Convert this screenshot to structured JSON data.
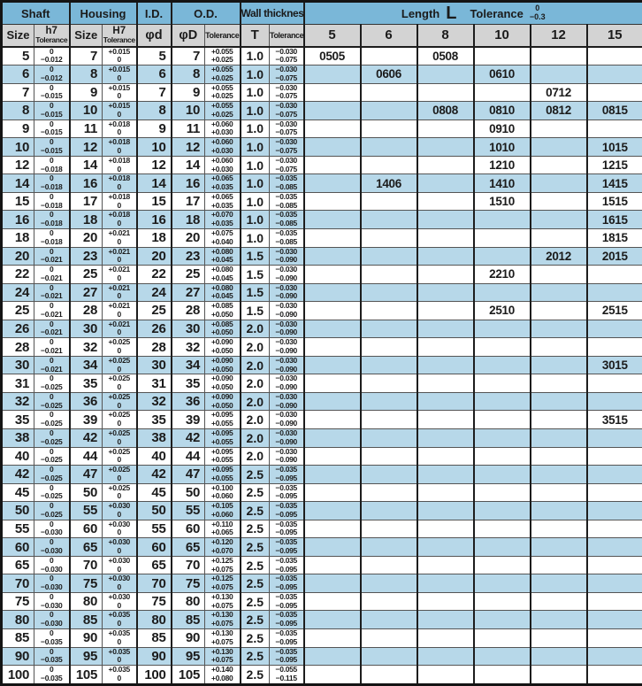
{
  "colors": {
    "header_blue": "#7ab7d8",
    "stripe_blue": "#b7d8e9",
    "subheader_gray": "#d3d3d3"
  },
  "header": {
    "groups": {
      "shaft": "Shaft",
      "housing": "Housing",
      "id": "I.D.",
      "od": "O.D.",
      "wall": "Wall thickness",
      "length_word": "Length",
      "length_symbol": "L",
      "length_tol_word": "Tolerance",
      "length_tol_top": "0",
      "length_tol_bottom": "−0.3"
    },
    "sub": {
      "size": "Size",
      "h7": "h7",
      "H7": "H7",
      "tolerance": "Tolerance",
      "phid": "φd",
      "phiD": "φD",
      "t": "T",
      "lengths": [
        "5",
        "6",
        "8",
        "10",
        "12",
        "15"
      ]
    }
  },
  "table": {
    "rows": [
      {
        "size": "5",
        "h7": [
          "0",
          "−0.012"
        ],
        "housing": "7",
        "H7": [
          "+0.015",
          "0"
        ],
        "id": "5",
        "od": "7",
        "od_tol": [
          "+0.055",
          "+0.025"
        ],
        "t": "1.0",
        "wall_tol": [
          "−0.030",
          "−0.075"
        ],
        "lengths": [
          "0505",
          "",
          "0508",
          "",
          "",
          ""
        ]
      },
      {
        "size": "6",
        "h7": [
          "0",
          "−0.012"
        ],
        "housing": "8",
        "H7": [
          "+0.015",
          "0"
        ],
        "id": "6",
        "od": "8",
        "od_tol": [
          "+0.055",
          "+0.025"
        ],
        "t": "1.0",
        "wall_tol": [
          "−0.030",
          "−0.075"
        ],
        "lengths": [
          "",
          "0606",
          "",
          "0610",
          "",
          ""
        ]
      },
      {
        "size": "7",
        "h7": [
          "0",
          "−0.015"
        ],
        "housing": "9",
        "H7": [
          "+0.015",
          "0"
        ],
        "id": "7",
        "od": "9",
        "od_tol": [
          "+0.055",
          "+0.025"
        ],
        "t": "1.0",
        "wall_tol": [
          "−0.030",
          "−0.075"
        ],
        "lengths": [
          "",
          "",
          "",
          "",
          "0712",
          ""
        ]
      },
      {
        "size": "8",
        "h7": [
          "0",
          "−0.015"
        ],
        "housing": "10",
        "H7": [
          "+0.015",
          "0"
        ],
        "id": "8",
        "od": "10",
        "od_tol": [
          "+0.055",
          "+0.025"
        ],
        "t": "1.0",
        "wall_tol": [
          "−0.030",
          "−0.075"
        ],
        "lengths": [
          "",
          "",
          "0808",
          "0810",
          "0812",
          "0815"
        ]
      },
      {
        "size": "9",
        "h7": [
          "0",
          "−0.015"
        ],
        "housing": "11",
        "H7": [
          "+0.018",
          "0"
        ],
        "id": "9",
        "od": "11",
        "od_tol": [
          "+0.060",
          "+0.030"
        ],
        "t": "1.0",
        "wall_tol": [
          "−0.030",
          "−0.075"
        ],
        "lengths": [
          "",
          "",
          "",
          "0910",
          "",
          ""
        ]
      },
      {
        "size": "10",
        "h7": [
          "0",
          "−0.015"
        ],
        "housing": "12",
        "H7": [
          "+0.018",
          "0"
        ],
        "id": "10",
        "od": "12",
        "od_tol": [
          "+0.060",
          "+0.030"
        ],
        "t": "1.0",
        "wall_tol": [
          "−0.030",
          "−0.075"
        ],
        "lengths": [
          "",
          "",
          "",
          "1010",
          "",
          "1015"
        ]
      },
      {
        "size": "12",
        "h7": [
          "0",
          "−0.018"
        ],
        "housing": "14",
        "H7": [
          "+0.018",
          "0"
        ],
        "id": "12",
        "od": "14",
        "od_tol": [
          "+0.060",
          "+0.030"
        ],
        "t": "1.0",
        "wall_tol": [
          "−0.030",
          "−0.075"
        ],
        "lengths": [
          "",
          "",
          "",
          "1210",
          "",
          "1215"
        ]
      },
      {
        "size": "14",
        "h7": [
          "0",
          "−0.018"
        ],
        "housing": "16",
        "H7": [
          "+0.018",
          "0"
        ],
        "id": "14",
        "od": "16",
        "od_tol": [
          "+0.065",
          "+0.035"
        ],
        "t": "1.0",
        "wall_tol": [
          "−0.035",
          "−0.085"
        ],
        "lengths": [
          "",
          "1406",
          "",
          "1410",
          "",
          "1415"
        ]
      },
      {
        "size": "15",
        "h7": [
          "0",
          "−0.018"
        ],
        "housing": "17",
        "H7": [
          "+0.018",
          "0"
        ],
        "id": "15",
        "od": "17",
        "od_tol": [
          "+0.065",
          "+0.035"
        ],
        "t": "1.0",
        "wall_tol": [
          "−0.035",
          "−0.085"
        ],
        "lengths": [
          "",
          "",
          "",
          "1510",
          "",
          "1515"
        ]
      },
      {
        "size": "16",
        "h7": [
          "0",
          "−0.018"
        ],
        "housing": "18",
        "H7": [
          "+0.018",
          "0"
        ],
        "id": "16",
        "od": "18",
        "od_tol": [
          "+0.070",
          "+0.035"
        ],
        "t": "1.0",
        "wall_tol": [
          "−0.035",
          "−0.085"
        ],
        "lengths": [
          "",
          "",
          "",
          "",
          "",
          "1615"
        ]
      },
      {
        "size": "18",
        "h7": [
          "0",
          "−0.018"
        ],
        "housing": "20",
        "H7": [
          "+0.021",
          "0"
        ],
        "id": "18",
        "od": "20",
        "od_tol": [
          "+0.075",
          "+0.040"
        ],
        "t": "1.0",
        "wall_tol": [
          "−0.035",
          "−0.085"
        ],
        "lengths": [
          "",
          "",
          "",
          "",
          "",
          "1815"
        ]
      },
      {
        "size": "20",
        "h7": [
          "0",
          "−0.021"
        ],
        "housing": "23",
        "H7": [
          "+0.021",
          "0"
        ],
        "id": "20",
        "od": "23",
        "od_tol": [
          "+0.080",
          "+0.045"
        ],
        "t": "1.5",
        "wall_tol": [
          "−0.030",
          "−0.090"
        ],
        "lengths": [
          "",
          "",
          "",
          "",
          "2012",
          "2015"
        ]
      },
      {
        "size": "22",
        "h7": [
          "0",
          "−0.021"
        ],
        "housing": "25",
        "H7": [
          "+0.021",
          "0"
        ],
        "id": "22",
        "od": "25",
        "od_tol": [
          "+0.080",
          "+0.045"
        ],
        "t": "1.5",
        "wall_tol": [
          "−0.030",
          "−0.090"
        ],
        "lengths": [
          "",
          "",
          "",
          "2210",
          "",
          ""
        ]
      },
      {
        "size": "24",
        "h7": [
          "0",
          "−0.021"
        ],
        "housing": "27",
        "H7": [
          "+0.021",
          "0"
        ],
        "id": "24",
        "od": "27",
        "od_tol": [
          "+0.080",
          "+0.045"
        ],
        "t": "1.5",
        "wall_tol": [
          "−0.030",
          "−0.090"
        ],
        "lengths": [
          "",
          "",
          "",
          "",
          "",
          ""
        ]
      },
      {
        "size": "25",
        "h7": [
          "0",
          "−0.021"
        ],
        "housing": "28",
        "H7": [
          "+0.021",
          "0"
        ],
        "id": "25",
        "od": "28",
        "od_tol": [
          "+0.085",
          "+0.050"
        ],
        "t": "1.5",
        "wall_tol": [
          "−0.030",
          "−0.090"
        ],
        "lengths": [
          "",
          "",
          "",
          "2510",
          "",
          "2515"
        ]
      },
      {
        "size": "26",
        "h7": [
          "0",
          "−0.021"
        ],
        "housing": "30",
        "H7": [
          "+0.021",
          "0"
        ],
        "id": "26",
        "od": "30",
        "od_tol": [
          "+0.085",
          "+0.050"
        ],
        "t": "2.0",
        "wall_tol": [
          "−0.030",
          "−0.090"
        ],
        "lengths": [
          "",
          "",
          "",
          "",
          "",
          ""
        ]
      },
      {
        "size": "28",
        "h7": [
          "0",
          "−0.021"
        ],
        "housing": "32",
        "H7": [
          "+0.025",
          "0"
        ],
        "id": "28",
        "od": "32",
        "od_tol": [
          "+0.090",
          "+0.050"
        ],
        "t": "2.0",
        "wall_tol": [
          "−0.030",
          "−0.090"
        ],
        "lengths": [
          "",
          "",
          "",
          "",
          "",
          ""
        ]
      },
      {
        "size": "30",
        "h7": [
          "0",
          "−0.021"
        ],
        "housing": "34",
        "H7": [
          "+0.025",
          "0"
        ],
        "id": "30",
        "od": "34",
        "od_tol": [
          "+0.090",
          "+0.050"
        ],
        "t": "2.0",
        "wall_tol": [
          "−0.030",
          "−0.090"
        ],
        "lengths": [
          "",
          "",
          "",
          "",
          "",
          "3015"
        ]
      },
      {
        "size": "31",
        "h7": [
          "0",
          "−0.025"
        ],
        "housing": "35",
        "H7": [
          "+0.025",
          "0"
        ],
        "id": "31",
        "od": "35",
        "od_tol": [
          "+0.090",
          "+0.050"
        ],
        "t": "2.0",
        "wall_tol": [
          "−0.030",
          "−0.090"
        ],
        "lengths": [
          "",
          "",
          "",
          "",
          "",
          ""
        ]
      },
      {
        "size": "32",
        "h7": [
          "0",
          "−0.025"
        ],
        "housing": "36",
        "H7": [
          "+0.025",
          "0"
        ],
        "id": "32",
        "od": "36",
        "od_tol": [
          "+0.090",
          "+0.050"
        ],
        "t": "2.0",
        "wall_tol": [
          "−0.030",
          "−0.090"
        ],
        "lengths": [
          "",
          "",
          "",
          "",
          "",
          ""
        ]
      },
      {
        "size": "35",
        "h7": [
          "0",
          "−0.025"
        ],
        "housing": "39",
        "H7": [
          "+0.025",
          "0"
        ],
        "id": "35",
        "od": "39",
        "od_tol": [
          "+0.095",
          "+0.055"
        ],
        "t": "2.0",
        "wall_tol": [
          "−0.030",
          "−0.090"
        ],
        "lengths": [
          "",
          "",
          "",
          "",
          "",
          "3515"
        ]
      },
      {
        "size": "38",
        "h7": [
          "0",
          "−0.025"
        ],
        "housing": "42",
        "H7": [
          "+0.025",
          "0"
        ],
        "id": "38",
        "od": "42",
        "od_tol": [
          "+0.095",
          "+0.055"
        ],
        "t": "2.0",
        "wall_tol": [
          "−0.030",
          "−0.090"
        ],
        "lengths": [
          "",
          "",
          "",
          "",
          "",
          ""
        ]
      },
      {
        "size": "40",
        "h7": [
          "0",
          "−0.025"
        ],
        "housing": "44",
        "H7": [
          "+0.025",
          "0"
        ],
        "id": "40",
        "od": "44",
        "od_tol": [
          "+0.095",
          "+0.055"
        ],
        "t": "2.0",
        "wall_tol": [
          "−0.030",
          "−0.090"
        ],
        "lengths": [
          "",
          "",
          "",
          "",
          "",
          ""
        ]
      },
      {
        "size": "42",
        "h7": [
          "0",
          "−0.025"
        ],
        "housing": "47",
        "H7": [
          "+0.025",
          "0"
        ],
        "id": "42",
        "od": "47",
        "od_tol": [
          "+0.095",
          "+0.055"
        ],
        "t": "2.5",
        "wall_tol": [
          "−0.035",
          "−0.095"
        ],
        "lengths": [
          "",
          "",
          "",
          "",
          "",
          ""
        ]
      },
      {
        "size": "45",
        "h7": [
          "0",
          "−0.025"
        ],
        "housing": "50",
        "H7": [
          "+0.025",
          "0"
        ],
        "id": "45",
        "od": "50",
        "od_tol": [
          "+0.100",
          "+0.060"
        ],
        "t": "2.5",
        "wall_tol": [
          "−0.035",
          "−0.095"
        ],
        "lengths": [
          "",
          "",
          "",
          "",
          "",
          ""
        ]
      },
      {
        "size": "50",
        "h7": [
          "0",
          "−0.025"
        ],
        "housing": "55",
        "H7": [
          "+0.030",
          "0"
        ],
        "id": "50",
        "od": "55",
        "od_tol": [
          "+0.105",
          "+0.060"
        ],
        "t": "2.5",
        "wall_tol": [
          "−0.035",
          "−0.095"
        ],
        "lengths": [
          "",
          "",
          "",
          "",
          "",
          ""
        ]
      },
      {
        "size": "55",
        "h7": [
          "0",
          "−0.030"
        ],
        "housing": "60",
        "H7": [
          "+0.030",
          "0"
        ],
        "id": "55",
        "od": "60",
        "od_tol": [
          "+0.110",
          "+0.065"
        ],
        "t": "2.5",
        "wall_tol": [
          "−0.035",
          "−0.095"
        ],
        "lengths": [
          "",
          "",
          "",
          "",
          "",
          ""
        ]
      },
      {
        "size": "60",
        "h7": [
          "0",
          "−0.030"
        ],
        "housing": "65",
        "H7": [
          "+0.030",
          "0"
        ],
        "id": "60",
        "od": "65",
        "od_tol": [
          "+0.120",
          "+0.070"
        ],
        "t": "2.5",
        "wall_tol": [
          "−0.035",
          "−0.095"
        ],
        "lengths": [
          "",
          "",
          "",
          "",
          "",
          ""
        ]
      },
      {
        "size": "65",
        "h7": [
          "0",
          "−0.030"
        ],
        "housing": "70",
        "H7": [
          "+0.030",
          "0"
        ],
        "id": "65",
        "od": "70",
        "od_tol": [
          "+0.125",
          "+0.075"
        ],
        "t": "2.5",
        "wall_tol": [
          "−0.035",
          "−0.095"
        ],
        "lengths": [
          "",
          "",
          "",
          "",
          "",
          ""
        ]
      },
      {
        "size": "70",
        "h7": [
          "0",
          "−0.030"
        ],
        "housing": "75",
        "H7": [
          "+0.030",
          "0"
        ],
        "id": "70",
        "od": "75",
        "od_tol": [
          "+0.125",
          "+0.075"
        ],
        "t": "2.5",
        "wall_tol": [
          "−0.035",
          "−0.095"
        ],
        "lengths": [
          "",
          "",
          "",
          "",
          "",
          ""
        ]
      },
      {
        "size": "75",
        "h7": [
          "0",
          "−0.030"
        ],
        "housing": "80",
        "H7": [
          "+0.030",
          "0"
        ],
        "id": "75",
        "od": "80",
        "od_tol": [
          "+0.130",
          "+0.075"
        ],
        "t": "2.5",
        "wall_tol": [
          "−0.035",
          "−0.095"
        ],
        "lengths": [
          "",
          "",
          "",
          "",
          "",
          ""
        ]
      },
      {
        "size": "80",
        "h7": [
          "0",
          "−0.030"
        ],
        "housing": "85",
        "H7": [
          "+0.035",
          "0"
        ],
        "id": "80",
        "od": "85",
        "od_tol": [
          "+0.130",
          "+0.075"
        ],
        "t": "2.5",
        "wall_tol": [
          "−0.035",
          "−0.095"
        ],
        "lengths": [
          "",
          "",
          "",
          "",
          "",
          ""
        ]
      },
      {
        "size": "85",
        "h7": [
          "0",
          "−0.035"
        ],
        "housing": "90",
        "H7": [
          "+0.035",
          "0"
        ],
        "id": "85",
        "od": "90",
        "od_tol": [
          "+0.130",
          "+0.075"
        ],
        "t": "2.5",
        "wall_tol": [
          "−0.035",
          "−0.095"
        ],
        "lengths": [
          "",
          "",
          "",
          "",
          "",
          ""
        ]
      },
      {
        "size": "90",
        "h7": [
          "0",
          "−0.035"
        ],
        "housing": "95",
        "H7": [
          "+0.035",
          "0"
        ],
        "id": "90",
        "od": "95",
        "od_tol": [
          "+0.130",
          "+0.075"
        ],
        "t": "2.5",
        "wall_tol": [
          "−0.035",
          "−0.095"
        ],
        "lengths": [
          "",
          "",
          "",
          "",
          "",
          ""
        ]
      },
      {
        "size": "100",
        "h7": [
          "0",
          "−0.035"
        ],
        "housing": "105",
        "H7": [
          "+0.035",
          "0"
        ],
        "id": "100",
        "od": "105",
        "od_tol": [
          "+0.140",
          "+0.080"
        ],
        "t": "2.5",
        "wall_tol": [
          "−0.055",
          "−0.115"
        ],
        "lengths": [
          "",
          "",
          "",
          "",
          "",
          ""
        ]
      }
    ]
  }
}
